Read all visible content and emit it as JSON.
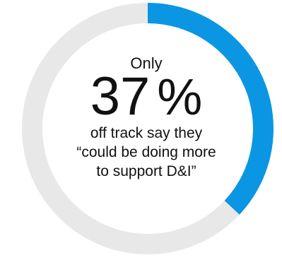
{
  "chart_data": {
    "type": "pie",
    "style": "donut",
    "values": [
      37,
      63
    ],
    "colors": [
      "#0a96e2",
      "#e8e8e8"
    ],
    "prefix": "Only",
    "value_label": "37",
    "unit": "%",
    "caption_lines": [
      "off track say they",
      "“could be doing more",
      "to support D&I”"
    ]
  }
}
